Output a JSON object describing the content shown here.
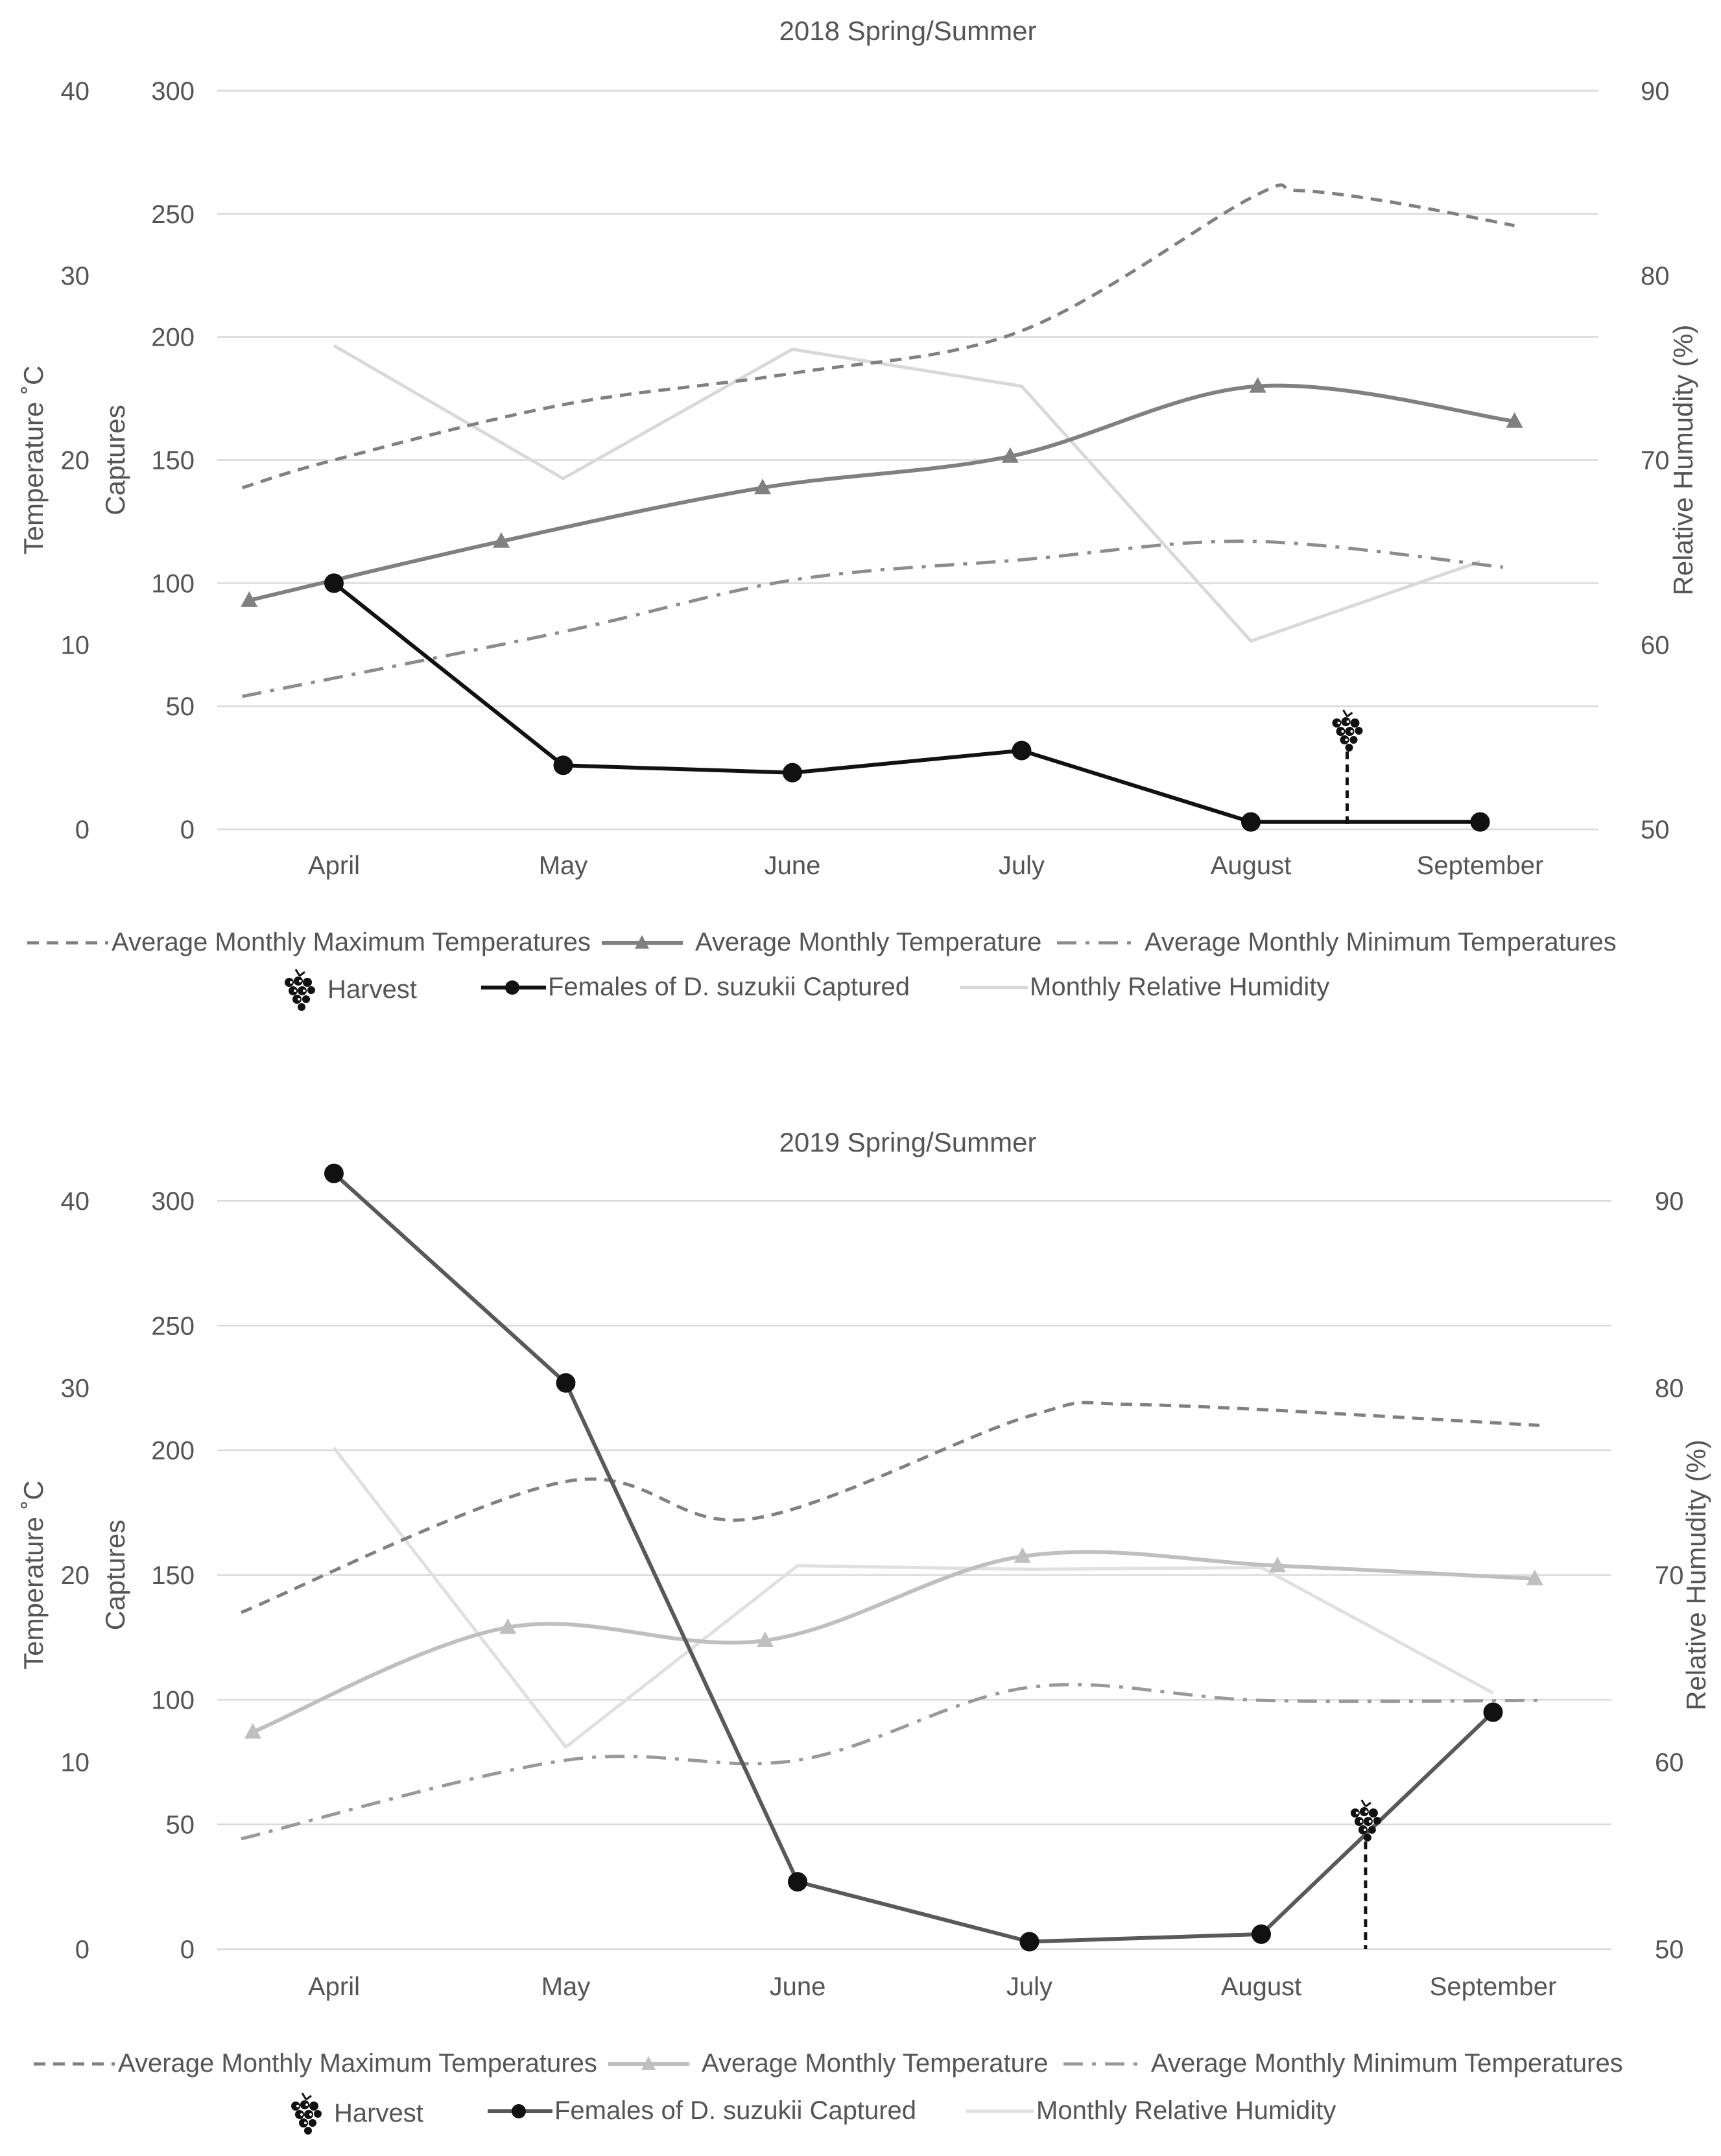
{
  "chart_data": [
    {
      "type": "line",
      "title": "2018 Spring/Summer",
      "categories": [
        "April",
        "May",
        "June",
        "July",
        "August",
        "September"
      ],
      "y_captures": {
        "label": "Captures",
        "range": [
          0,
          300
        ],
        "ticks": [
          "0",
          "50",
          "100",
          "150",
          "200",
          "250",
          "300"
        ]
      },
      "y_temperature": {
        "label": "Temperature ˚C",
        "range": [
          0,
          40
        ],
        "ticks": [
          "0",
          "10",
          "20",
          "30",
          "40"
        ]
      },
      "y_humidity": {
        "label": "Relative Humudity (%)",
        "range": [
          50,
          90
        ],
        "ticks": [
          "50",
          "60",
          "70",
          "80",
          "90"
        ]
      },
      "grid": true,
      "legend_position": "bottom",
      "series": [
        {
          "name": "Average Monthly Maximum Temperatures",
          "axis": "temperature",
          "style": "dashed",
          "color": "#808080",
          "x": [
            -0.4,
            0,
            1,
            2,
            3,
            4,
            4.2,
            4.6,
            5.15
          ],
          "values": [
            18.5,
            20.0,
            23.0,
            24.7,
            27.0,
            34.2,
            34.6,
            34.0,
            32.7
          ]
        },
        {
          "name": "Average Monthly Temperature",
          "axis": "temperature",
          "style": "solid-triangle",
          "color": "#808080",
          "x": [
            -0.37,
            0.73,
            1.87,
            2.95,
            4.03,
            5.15
          ],
          "values": [
            12.4,
            15.6,
            18.5,
            20.2,
            24.0,
            22.1
          ]
        },
        {
          "name": "Average Monthly Minimum Temperatures",
          "axis": "temperature",
          "style": "dashdot",
          "color": "#8c8c8c",
          "x": [
            -0.4,
            1,
            2,
            3,
            4,
            5.1
          ],
          "values": [
            7.2,
            10.7,
            13.5,
            14.6,
            15.6,
            14.2
          ]
        },
        {
          "name": "Harvest",
          "marker": "grapes",
          "x": [
            4.42
          ],
          "values": [
            0
          ]
        },
        {
          "name": "Females of D. suzukii Captured",
          "axis": "captures",
          "style": "solid-dot",
          "color": "#111111",
          "x": [
            0,
            1,
            2,
            3,
            4,
            5
          ],
          "values": [
            100,
            26,
            23,
            32,
            3,
            3
          ]
        },
        {
          "name": "Monthly Relative Humidity",
          "axis": "humidity",
          "style": "solid",
          "color": "#d9d9d9",
          "x": [
            0,
            1,
            2,
            3,
            4,
            5
          ],
          "values": [
            76.2,
            69.0,
            76.0,
            74.0,
            60.2,
            64.5
          ]
        }
      ]
    },
    {
      "type": "line",
      "title": "2019 Spring/Summer",
      "categories": [
        "April",
        "May",
        "June",
        "July",
        "August",
        "September"
      ],
      "y_captures": {
        "label": "Captures",
        "range": [
          0,
          300
        ],
        "ticks": [
          "0",
          "50",
          "100",
          "150",
          "200",
          "250",
          "300"
        ]
      },
      "y_temperature": {
        "label": "Temperature ˚C",
        "range": [
          0,
          40
        ],
        "ticks": [
          "0",
          "10",
          "20",
          "30",
          "40"
        ]
      },
      "y_humidity": {
        "label": "Relative Humudity (%)",
        "range": [
          50,
          90
        ],
        "ticks": [
          "50",
          "60",
          "70",
          "80",
          "90"
        ]
      },
      "grid": true,
      "legend_position": "bottom",
      "series": [
        {
          "name": "Average Monthly Maximum Temperatures",
          "axis": "temperature",
          "style": "dashed",
          "color": "#808080",
          "x": [
            -0.4,
            1,
            1.8,
            3,
            3.5,
            5.2
          ],
          "values": [
            18.0,
            25.0,
            23.0,
            28.5,
            29.1,
            28.0
          ]
        },
        {
          "name": "Average Monthly Temperature",
          "axis": "temperature",
          "style": "solid-triangle",
          "color": "#bfbfbf",
          "x": [
            -0.35,
            0.75,
            1.86,
            2.97,
            4.07,
            5.18
          ],
          "values": [
            11.6,
            17.2,
            16.5,
            21.0,
            20.5,
            19.8
          ]
        },
        {
          "name": "Average Monthly Minimum Temperatures",
          "axis": "temperature",
          "style": "dashdot",
          "color": "#999999",
          "x": [
            -0.4,
            1,
            2,
            3,
            4,
            5.2
          ],
          "values": [
            5.9,
            10.1,
            10.1,
            14.0,
            13.3,
            13.3
          ]
        },
        {
          "name": "Harvest",
          "marker": "grapes",
          "x": [
            4.45
          ],
          "values": [
            0
          ]
        },
        {
          "name": "Females of D. suzukii Captured",
          "axis": "captures",
          "style": "solid-dot",
          "color": "#595959",
          "x": [
            0,
            1,
            2,
            3,
            4,
            5
          ],
          "values": [
            311,
            227,
            27,
            3,
            6,
            95
          ]
        },
        {
          "name": "Monthly Relative Humidity",
          "axis": "humidity",
          "style": "solid",
          "color": "#e0e0e0",
          "x": [
            0,
            1,
            2,
            3,
            4,
            5
          ],
          "values": [
            76.8,
            60.8,
            70.5,
            70.3,
            70.4,
            63.7
          ]
        }
      ]
    }
  ]
}
